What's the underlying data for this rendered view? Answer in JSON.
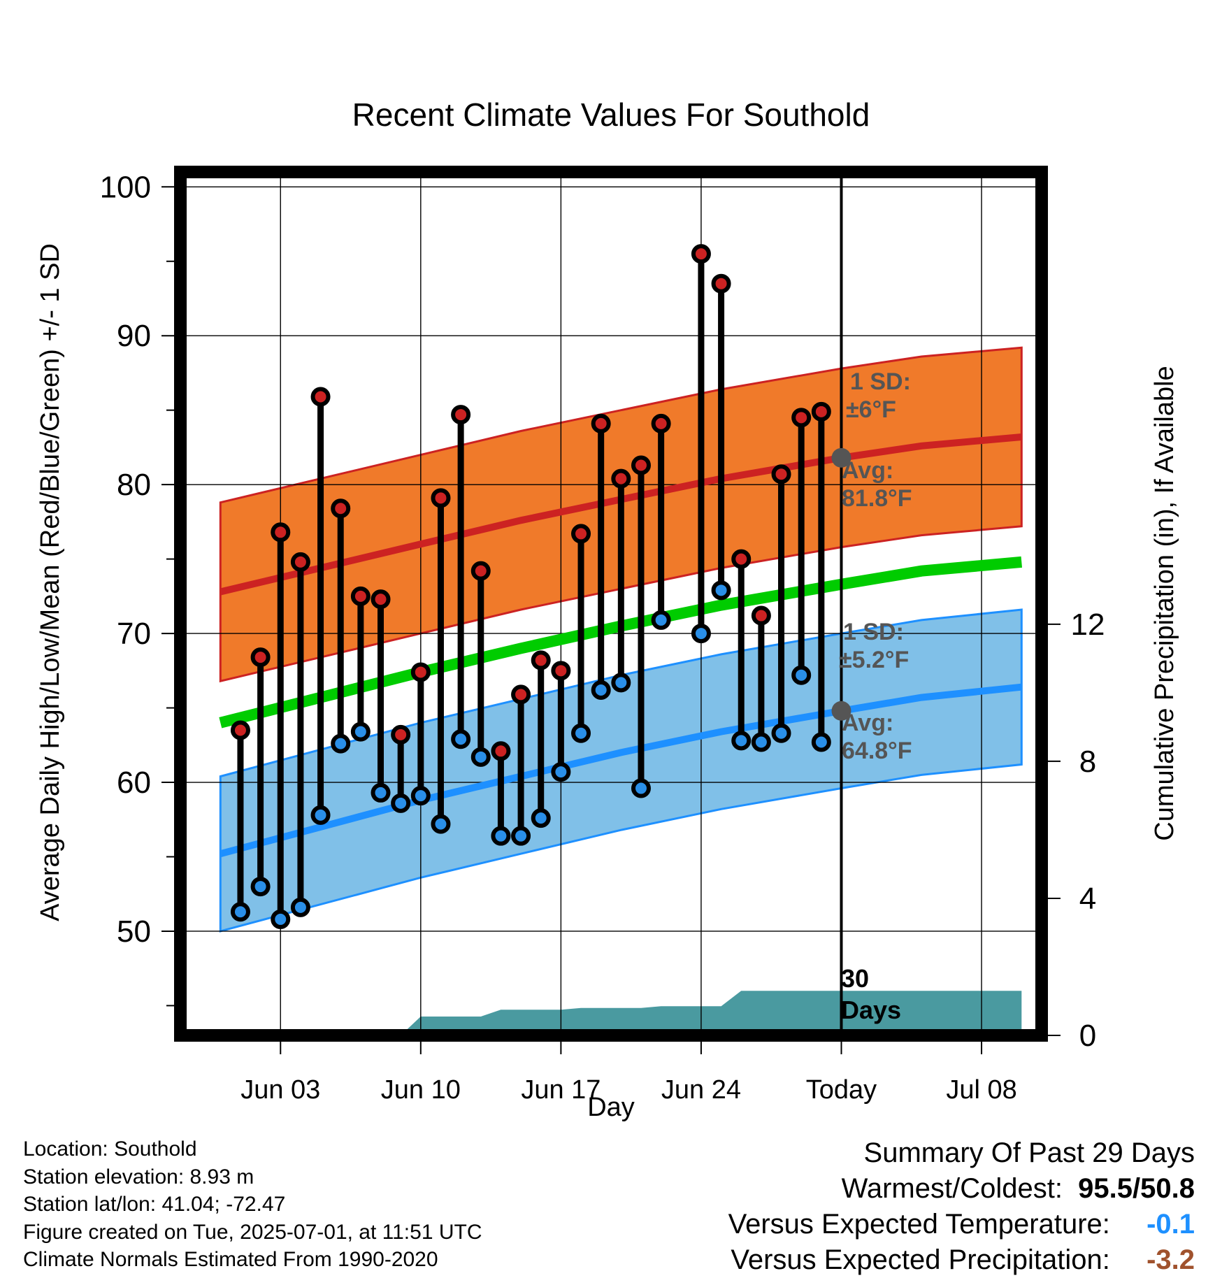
{
  "chart_data": {
    "type": "line",
    "title": "Recent Climate Values For Southold",
    "xlabel": "Day",
    "ylabel": "Average Daily High/Low/Mean (Red/Blue/Green) +/- 1 SD",
    "y2label": "Cumulative Precipitation (in), If Available",
    "ylim": [
      43,
      101
    ],
    "y2lim": [
      0,
      25.2
    ],
    "xlim": [
      "2025-05-29",
      "2025-07-11"
    ],
    "x_ticks": [
      "2025-06-03",
      "2025-06-10",
      "2025-06-17",
      "2025-06-24",
      "2025-07-01",
      "2025-07-08"
    ],
    "x_tick_labels": [
      "Jun 03",
      "Jun 10",
      "Jun 17",
      "Jun 24",
      "Today",
      "Jul 08"
    ],
    "y_ticks": [
      50,
      60,
      70,
      80,
      90,
      100
    ],
    "y2_ticks": [
      0,
      4,
      8,
      12
    ],
    "grid": true,
    "today": "2025-07-01",
    "today_label": "30\nDays",
    "daily": {
      "dates": [
        "2025-06-01",
        "2025-06-02",
        "2025-06-03",
        "2025-06-04",
        "2025-06-05",
        "2025-06-06",
        "2025-06-07",
        "2025-06-08",
        "2025-06-09",
        "2025-06-10",
        "2025-06-11",
        "2025-06-12",
        "2025-06-13",
        "2025-06-14",
        "2025-06-15",
        "2025-06-16",
        "2025-06-17",
        "2025-06-18",
        "2025-06-19",
        "2025-06-20",
        "2025-06-21",
        "2025-06-22",
        "2025-06-24",
        "2025-06-25",
        "2025-06-26",
        "2025-06-27",
        "2025-06-28",
        "2025-06-29",
        "2025-06-30"
      ],
      "high": [
        63.5,
        68.4,
        76.8,
        74.8,
        85.9,
        78.4,
        72.5,
        72.3,
        63.2,
        67.4,
        79.1,
        84.7,
        74.2,
        62.1,
        65.9,
        68.2,
        67.5,
        76.7,
        84.1,
        80.4,
        81.3,
        84.1,
        95.5,
        93.5,
        75.0,
        71.2,
        80.7,
        84.5,
        84.9
      ],
      "low": [
        51.3,
        53.0,
        50.8,
        51.6,
        57.8,
        62.6,
        63.4,
        59.3,
        58.6,
        59.1,
        57.2,
        62.9,
        61.7,
        56.4,
        56.4,
        57.6,
        60.7,
        63.3,
        66.2,
        66.7,
        59.6,
        70.9,
        70.0,
        72.9,
        62.8,
        62.7,
        63.3,
        67.2,
        62.7
      ]
    },
    "normals": {
      "dates": [
        "2025-05-31",
        "2025-06-05",
        "2025-06-10",
        "2025-06-15",
        "2025-06-20",
        "2025-06-25",
        "2025-07-01",
        "2025-07-05",
        "2025-07-10"
      ],
      "avg_high": [
        72.8,
        74.4,
        76.0,
        77.6,
        79.0,
        80.4,
        81.8,
        82.6,
        83.2
      ],
      "avg_low": [
        55.2,
        57.0,
        58.8,
        60.4,
        62.0,
        63.4,
        64.8,
        65.7,
        66.4
      ],
      "avg_mean": [
        64.0,
        65.7,
        67.4,
        69.0,
        70.5,
        71.9,
        73.3,
        74.2,
        74.8
      ],
      "high_sd": 6,
      "low_sd": 5.2
    },
    "precipitation": {
      "dates": [
        "2025-05-31",
        "2025-06-09",
        "2025-06-10",
        "2025-06-13",
        "2025-06-14",
        "2025-06-17",
        "2025-06-18",
        "2025-06-21",
        "2025-06-22",
        "2025-06-25",
        "2025-06-26",
        "2025-07-10"
      ],
      "cumulative": [
        0,
        0,
        0.55,
        0.55,
        0.75,
        0.75,
        0.8,
        0.8,
        0.85,
        0.85,
        1.3,
        1.3
      ]
    },
    "annotations": {
      "high_sd_label": "1 SD:",
      "high_sd_value": "±6°F",
      "high_avg_label": "Avg:",
      "high_avg_value": "81.8°F",
      "low_sd_label": "1 SD:",
      "low_sd_value": "±5.2°F",
      "low_avg_label": "Avg:",
      "low_avg_value": "64.8°F"
    },
    "colors": {
      "high_band": "#f07a2a",
      "high_line": "#cc2222",
      "low_band": "#80c0e8",
      "low_line": "#1e90ff",
      "mean_line": "#00cc00",
      "precip": "#4a9aa0",
      "high_marker": "#cc2222",
      "low_marker": "#2a8fe8",
      "annotation": "#555555",
      "warm_text": "#a0522d",
      "cool_text": "#1e90ff"
    }
  },
  "footer": {
    "location": "Location: Southold",
    "elevation": "Station elevation: 8.93 m",
    "latlon": "Station lat/lon: 41.04; -72.47",
    "created": "Figure created on Tue, 2025-07-01, at 11:51 UTC",
    "normals": "Climate Normals Estimated From 1990-2020"
  },
  "summary": {
    "title": "Summary Of Past 29 Days",
    "warmest_coldest_label": "Warmest/Coldest:",
    "warmest_coldest_value": "95.5/50.8",
    "temp_label": "Versus Expected Temperature:",
    "temp_value": "-0.1",
    "precip_label": "Versus Expected Precipitation:",
    "precip_value": "-3.2"
  }
}
